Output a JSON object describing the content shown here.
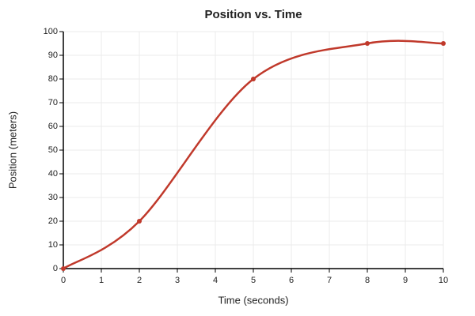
{
  "chart_data": {
    "type": "line",
    "title": "Position vs. Time",
    "x_label": "Time (seconds)",
    "y_label": "Position (meters)",
    "x": [
      0,
      2,
      5,
      8,
      10
    ],
    "series": [
      {
        "name": "Position",
        "color": "#c0392b",
        "values": [
          0,
          20,
          80,
          95,
          95
        ]
      }
    ],
    "xlim": [
      0,
      10
    ],
    "xticks": [
      0,
      1,
      2,
      3,
      4,
      5,
      6,
      7,
      8,
      9,
      10
    ],
    "ylim": [
      0,
      100
    ],
    "yticks": [
      0,
      10,
      20,
      30,
      40,
      50,
      60,
      70,
      80,
      90,
      100
    ],
    "grid": true
  }
}
